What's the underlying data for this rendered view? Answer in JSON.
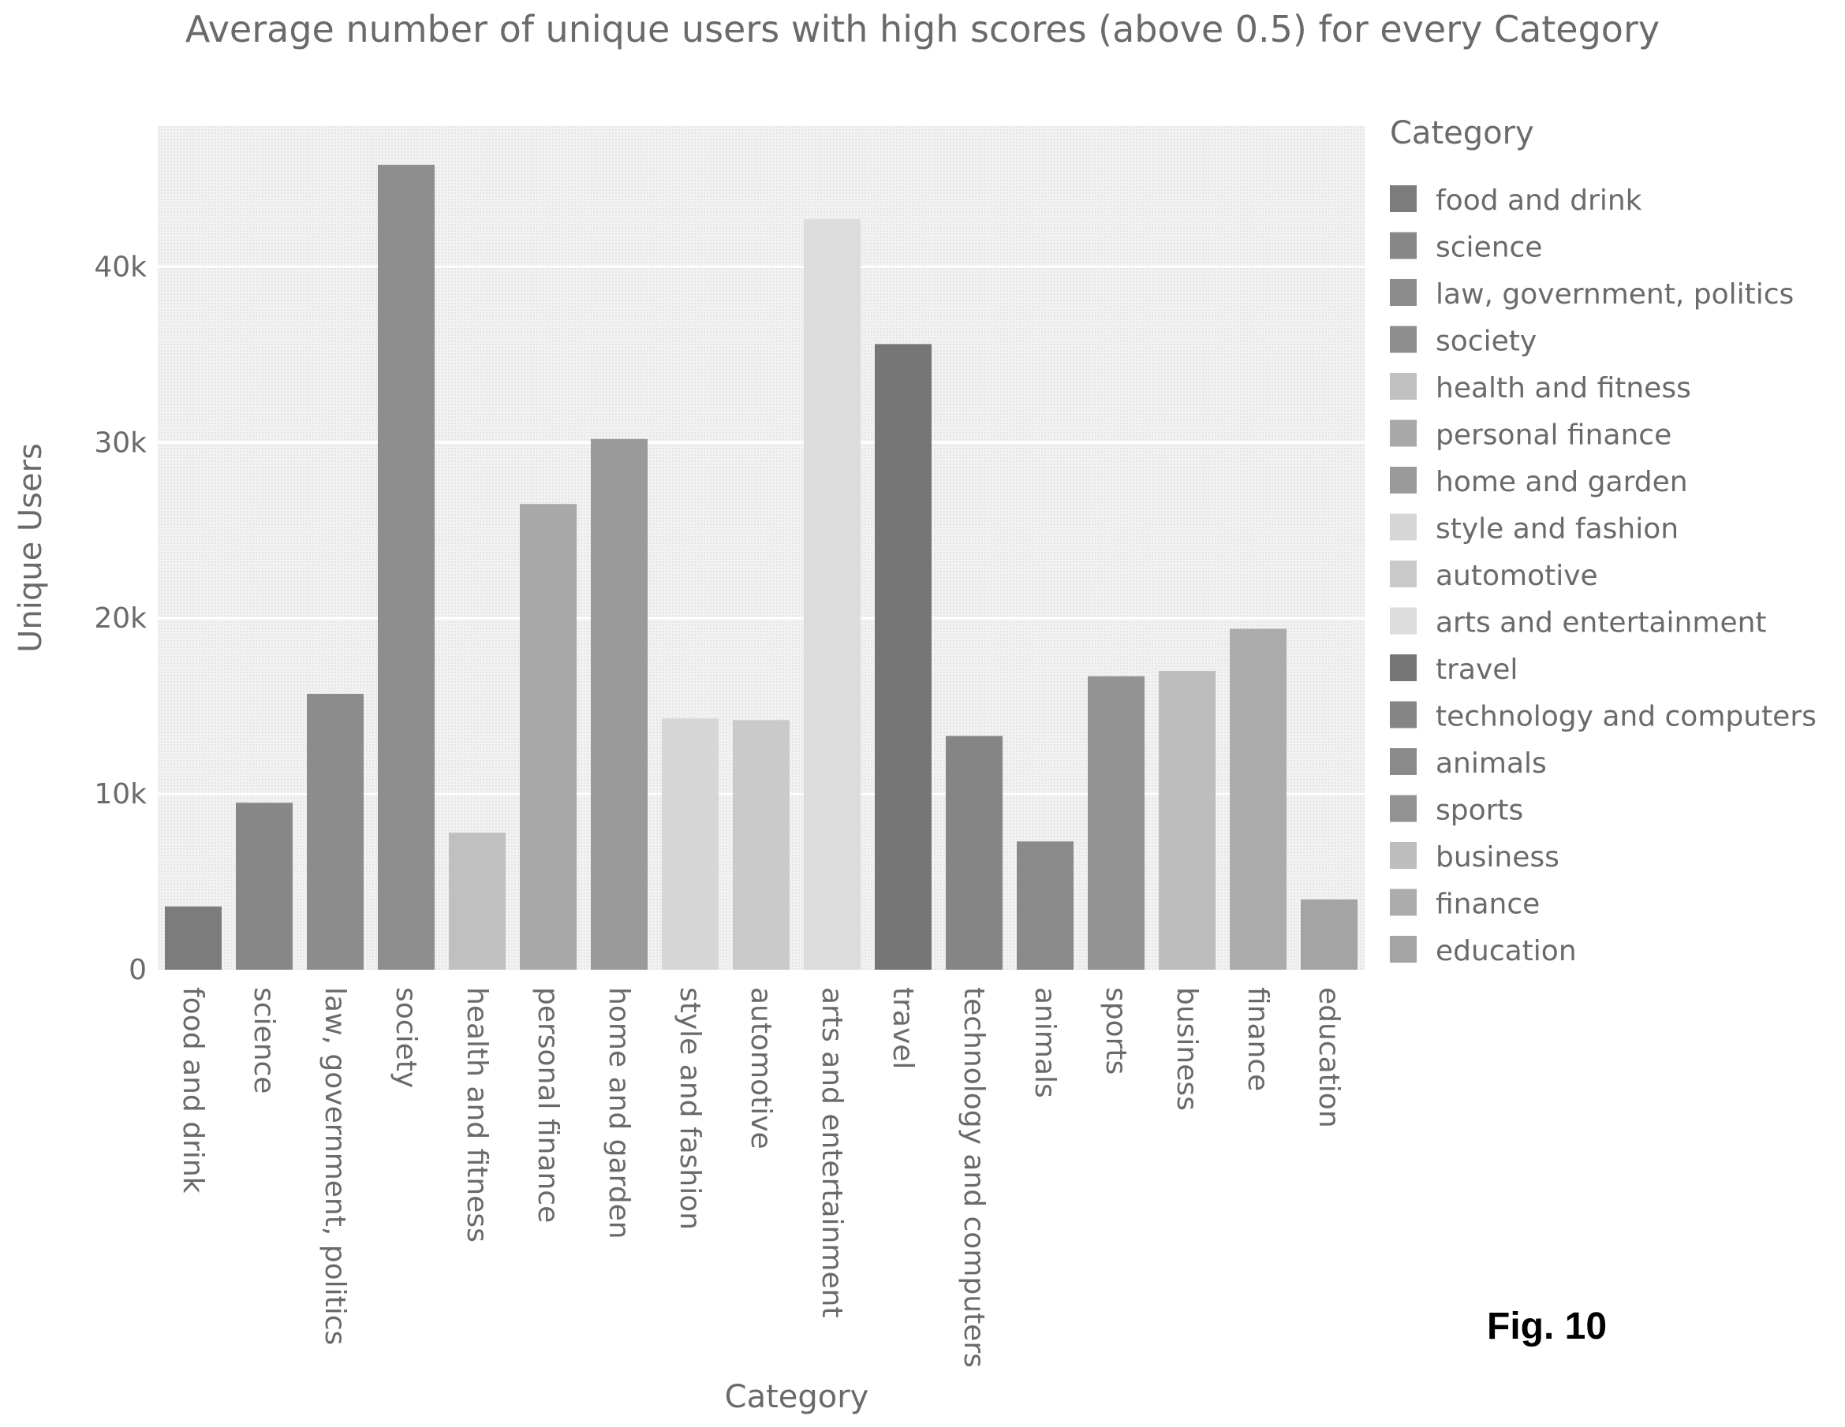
{
  "chart_data": {
    "type": "bar",
    "title": "Average number of unique users with high scores (above 0.5) for every Category",
    "xlabel": "Category",
    "ylabel": "Unique Users",
    "ylim": [
      0,
      48000
    ],
    "yticks": [
      0,
      10000,
      20000,
      30000,
      40000
    ],
    "ytick_labels": [
      "0",
      "10k",
      "20k",
      "30k",
      "40k"
    ],
    "grid": true,
    "legend_title": "Category",
    "legend_position": "right",
    "categories": [
      "food and drink",
      "science",
      "law, government, politics",
      "society",
      "health and fitness",
      "personal finance",
      "home and garden",
      "style and fashion",
      "automotive",
      "arts and entertainment",
      "travel",
      "technology and computers",
      "animals",
      "sports",
      "business",
      "finance",
      "education"
    ],
    "values": [
      3600,
      9500,
      15700,
      45800,
      7800,
      26500,
      30200,
      14300,
      14200,
      42700,
      35600,
      13300,
      7300,
      16700,
      17000,
      19400,
      4000
    ],
    "colors": [
      "#7c7c7c",
      "#878787",
      "#8c8c8c",
      "#8e8e8e",
      "#c0c0c0",
      "#a9a9a9",
      "#9a9a9a",
      "#d6d6d6",
      "#cacaca",
      "#dcdcdc",
      "#767676",
      "#858585",
      "#8a8a8a",
      "#939393",
      "#bdbdbd",
      "#acacac",
      "#a4a4a4"
    ]
  },
  "figure_label": "Fig. 10"
}
